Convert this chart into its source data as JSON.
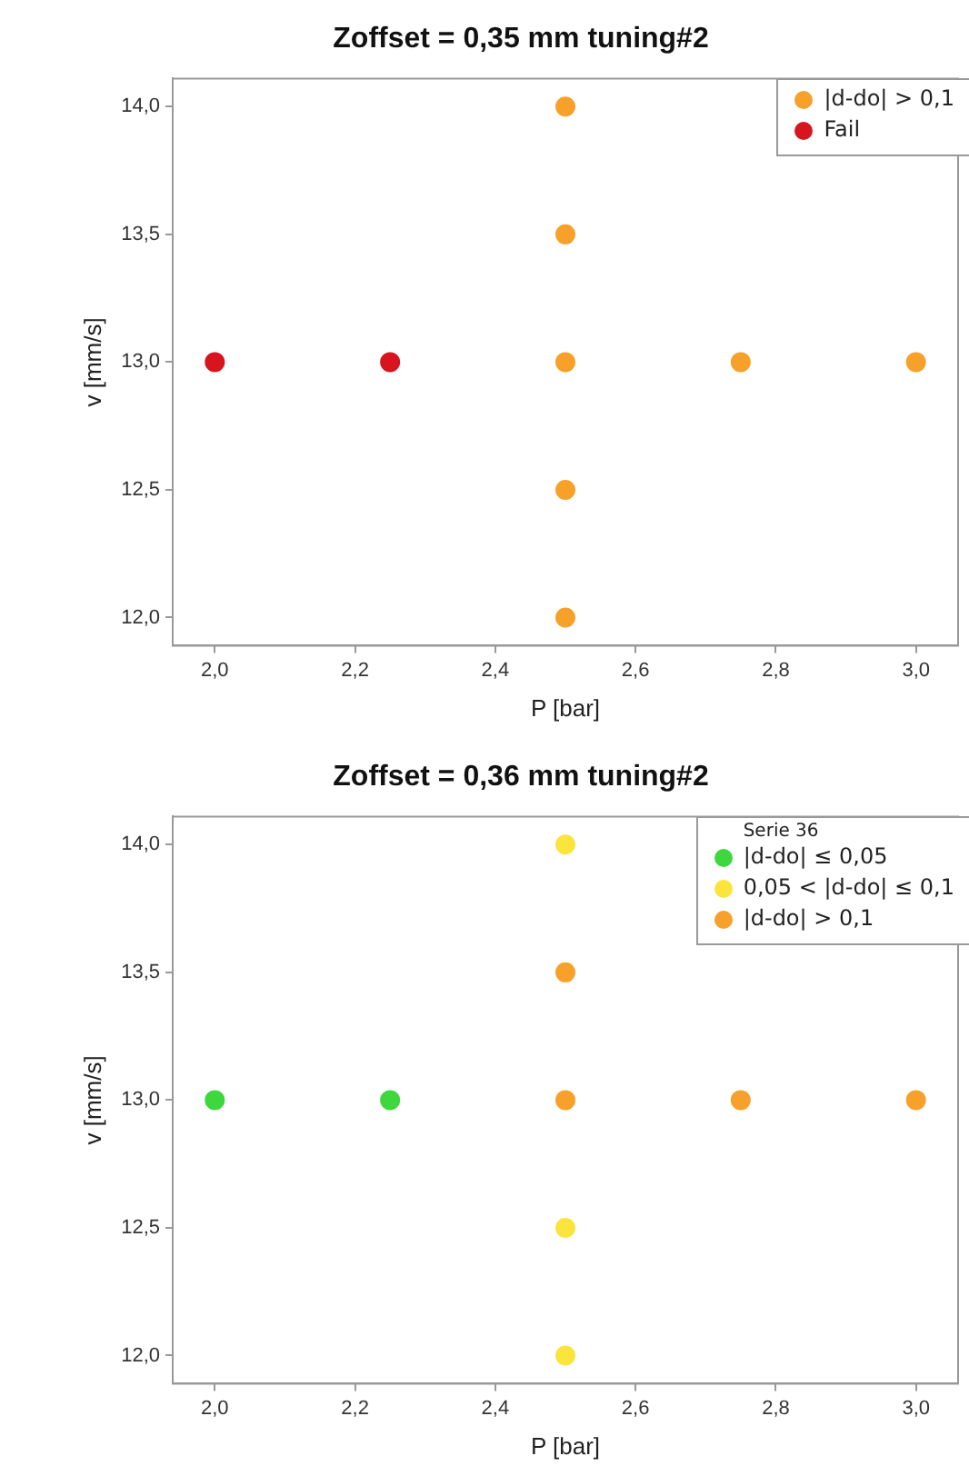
{
  "chart_data": [
    {
      "type": "scatter",
      "title": "Zoffset = 0,35 mm tuning#2",
      "xlabel": "P [bar]",
      "ylabel": "v [mm/s]",
      "xlim": [
        1.94,
        3.06
      ],
      "ylim": [
        11.89,
        14.11
      ],
      "xticks": [
        {
          "value": 2,
          "label": "2,0"
        },
        {
          "value": 2.2,
          "label": "2,2"
        },
        {
          "value": 2.4,
          "label": "2,4"
        },
        {
          "value": 2.6,
          "label": "2,6"
        },
        {
          "value": 2.8,
          "label": "2,8"
        },
        {
          "value": 3,
          "label": "3,0"
        }
      ],
      "yticks": [
        {
          "value": 12,
          "label": "12,0"
        },
        {
          "value": 12.5,
          "label": "12,5"
        },
        {
          "value": 13,
          "label": "13,0"
        },
        {
          "value": 13.5,
          "label": "13,5"
        },
        {
          "value": 14,
          "label": "14,0"
        }
      ],
      "grid": false,
      "legend": "top right",
      "marker": "circle",
      "series": [
        {
          "name": "|d-do| > 0,1",
          "color": "#f7a12a",
          "x": [
            2.5,
            2.5,
            2.5,
            2.5,
            2.5,
            2.75,
            3.0
          ],
          "values": [
            14.0,
            13.5,
            13.0,
            12.5,
            12.0,
            13.0,
            13.0
          ]
        },
        {
          "name": "Fail",
          "color": "#d7151e",
          "x": [
            2.0,
            2.25
          ],
          "values": [
            13.0,
            13.0
          ]
        }
      ]
    },
    {
      "type": "scatter",
      "title": "Zoffset = 0,36 mm tuning#2",
      "xlabel": "P [bar]",
      "ylabel": "v [mm/s]",
      "legend_title": "Serie 36",
      "xlim": [
        1.94,
        3.06
      ],
      "ylim": [
        11.89,
        14.11
      ],
      "xticks": [
        {
          "value": 2,
          "label": "2,0"
        },
        {
          "value": 2.2,
          "label": "2,2"
        },
        {
          "value": 2.4,
          "label": "2,4"
        },
        {
          "value": 2.6,
          "label": "2,6"
        },
        {
          "value": 2.8,
          "label": "2,8"
        },
        {
          "value": 3,
          "label": "3,0"
        }
      ],
      "yticks": [
        {
          "value": 12,
          "label": "12,0"
        },
        {
          "value": 12.5,
          "label": "12,5"
        },
        {
          "value": 13,
          "label": "13,0"
        },
        {
          "value": 13.5,
          "label": "13,5"
        },
        {
          "value": 14,
          "label": "14,0"
        }
      ],
      "grid": false,
      "legend": "top right",
      "marker": "circle",
      "series": [
        {
          "name": "|d-do| ≤ 0,05",
          "color": "#3ed73e",
          "x": [
            2.0,
            2.25
          ],
          "values": [
            13.0,
            13.0
          ]
        },
        {
          "name": "0,05 < |d-do| ≤ 0,1",
          "color": "#fbe43c",
          "x": [
            2.5,
            2.5,
            2.5
          ],
          "values": [
            14.0,
            12.5,
            12.0
          ]
        },
        {
          "name": "|d-do| > 0,1",
          "color": "#f7a12a",
          "x": [
            2.5,
            2.5,
            2.75,
            3.0
          ],
          "values": [
            13.5,
            13.0,
            13.0,
            13.0
          ]
        }
      ]
    }
  ]
}
